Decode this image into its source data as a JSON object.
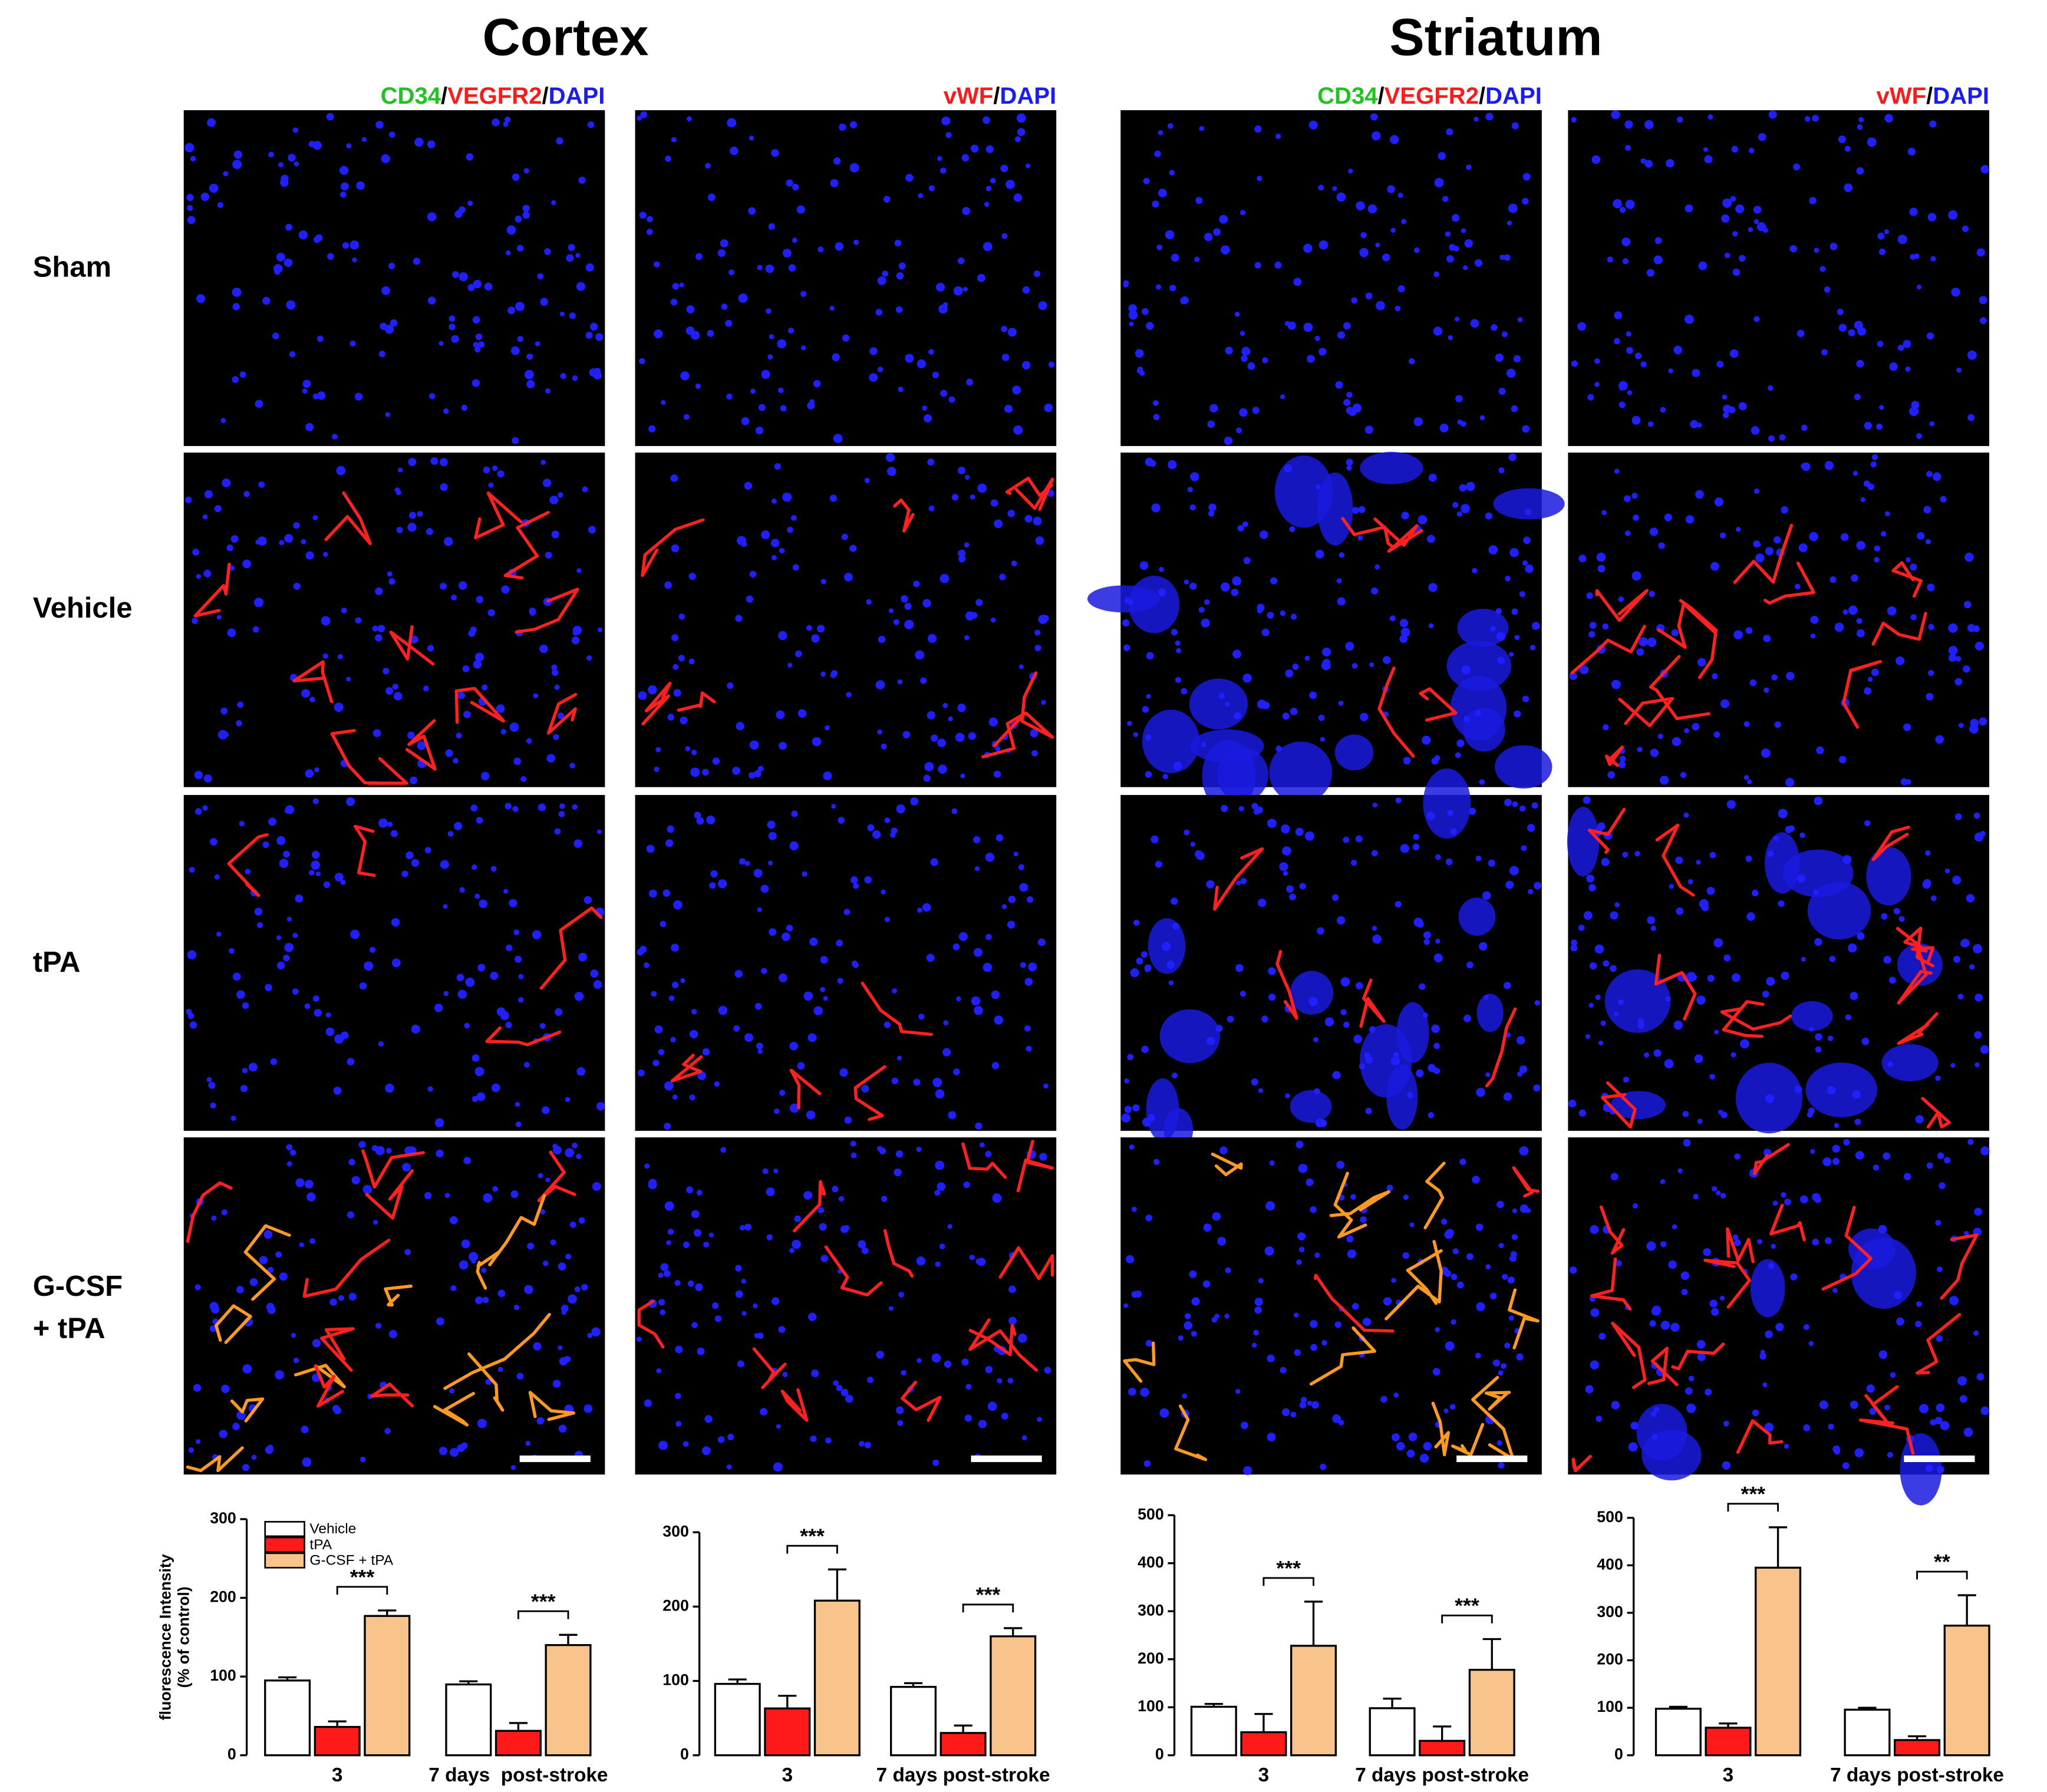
{
  "titles": [
    "Cortex",
    "Striatum"
  ],
  "stain_labels": [
    [
      {
        "text": "CD34",
        "color": "#1fc41f"
      },
      {
        "text": "/",
        "color": "#000000"
      },
      {
        "text": "VEGFR2",
        "color": "#ff1a1a"
      },
      {
        "text": "/",
        "color": "#000000"
      },
      {
        "text": "DAPI",
        "color": "#1a1aff"
      }
    ],
    [
      {
        "text": "vWF",
        "color": "#ff1a1a"
      },
      {
        "text": "/",
        "color": "#000000"
      },
      {
        "text": "DAPI",
        "color": "#1a1aff"
      }
    ],
    [
      {
        "text": "CD34",
        "color": "#1fc41f"
      },
      {
        "text": "/",
        "color": "#000000"
      },
      {
        "text": "VEGFR2",
        "color": "#ff1a1a"
      },
      {
        "text": "/",
        "color": "#000000"
      },
      {
        "text": "DAPI",
        "color": "#1a1aff"
      }
    ],
    [
      {
        "text": "vWF",
        "color": "#ff1a1a"
      },
      {
        "text": "/",
        "color": "#000000"
      },
      {
        "text": "DAPI",
        "color": "#1a1aff"
      }
    ]
  ],
  "row_labels": [
    [
      "Sham"
    ],
    [
      "Vehicle"
    ],
    [
      "tPA"
    ],
    [
      "G-CSF",
      "+ tPA"
    ]
  ],
  "chart_data": [
    {
      "type": "bar",
      "ylabel": [
        "fluorescence Intensity",
        "(% of control)"
      ],
      "legend": "upper left",
      "categories": [
        "3",
        "7 days  post-stroke"
      ],
      "series": [
        {
          "name": "Vehicle",
          "color": "#ffffff",
          "values": [
            95,
            90
          ],
          "errors": [
            4,
            4
          ]
        },
        {
          "name": "tPA",
          "color": "#ff1a1a",
          "values": [
            36,
            31
          ],
          "errors": [
            7,
            10
          ]
        },
        {
          "name": "G-CSF + tPA",
          "color": "#f9c38c",
          "values": [
            177,
            140
          ],
          "errors": [
            7,
            13
          ]
        }
      ],
      "significance": [
        "***",
        "***"
      ],
      "ylim": [
        0,
        300
      ],
      "yticks": [
        0,
        100,
        200,
        300
      ]
    },
    {
      "type": "bar",
      "categories": [
        "3",
        "7 days post-stroke"
      ],
      "series": [
        {
          "color": "#ffffff",
          "values": [
            96,
            92
          ],
          "errors": [
            6,
            5
          ]
        },
        {
          "color": "#ff1a1a",
          "values": [
            63,
            30
          ],
          "errors": [
            17,
            10
          ]
        },
        {
          "color": "#f9c38c",
          "values": [
            208,
            160
          ],
          "errors": [
            42,
            11
          ]
        }
      ],
      "significance": [
        "***",
        "***"
      ],
      "ylim": [
        0,
        300
      ],
      "yticks": [
        0,
        100,
        200,
        300
      ]
    },
    {
      "type": "bar",
      "categories": [
        "3",
        "7 days post-stroke"
      ],
      "series": [
        {
          "color": "#ffffff",
          "values": [
            101,
            98
          ],
          "errors": [
            6,
            20
          ]
        },
        {
          "color": "#ff1a1a",
          "values": [
            48,
            30
          ],
          "errors": [
            38,
            30
          ]
        },
        {
          "color": "#f9c38c",
          "values": [
            228,
            178
          ],
          "errors": [
            92,
            64
          ]
        }
      ],
      "significance": [
        "***",
        "***"
      ],
      "ylim": [
        0,
        500
      ],
      "yticks": [
        0,
        100,
        200,
        300,
        400,
        500
      ]
    },
    {
      "type": "bar",
      "categories": [
        "3",
        "7 days post-stroke"
      ],
      "series": [
        {
          "color": "#ffffff",
          "values": [
            98,
            96
          ],
          "errors": [
            4,
            4
          ]
        },
        {
          "color": "#ff1a1a",
          "values": [
            58,
            32
          ],
          "errors": [
            9,
            8
          ]
        },
        {
          "color": "#f9c38c",
          "values": [
            395,
            273
          ],
          "errors": [
            85,
            64
          ]
        }
      ],
      "significance": [
        "***",
        "**"
      ],
      "ylim": [
        0,
        500
      ],
      "yticks": [
        0,
        100,
        200,
        300,
        400,
        500
      ]
    }
  ]
}
